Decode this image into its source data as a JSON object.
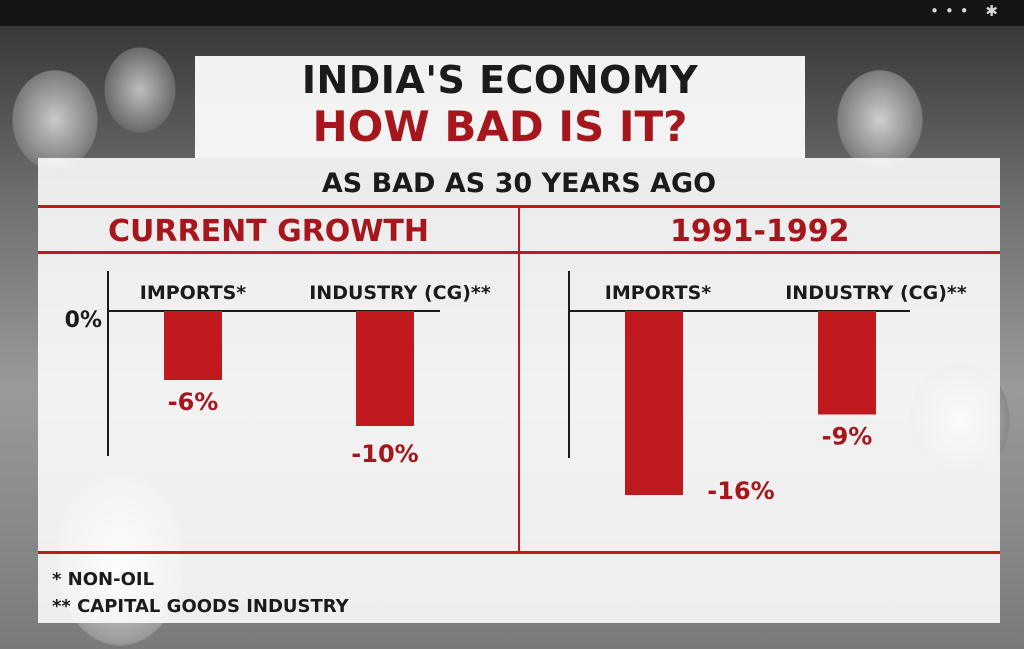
{
  "status_bar": {
    "icons": [
      "more-dots-icon",
      "bluetooth-icon"
    ],
    "glyphs": "••• ✱"
  },
  "title_line_1": "INDIA'S ECONOMY",
  "title_line_2": "HOW BAD IS IT?",
  "subtitle": "AS BAD AS 30 YEARS AGO",
  "colors": {
    "accent": "#c0191e",
    "title_red": "#a5171c",
    "text": "#1b1b1b"
  },
  "chart_data": [
    {
      "type": "bar",
      "title": "CURRENT GROWTH",
      "categories": [
        "IMPORTS*",
        "INDUSTRY (CG)**"
      ],
      "values": [
        -6,
        -10
      ],
      "value_labels": [
        "-6%",
        "-10%"
      ],
      "axis_label": "0%",
      "ylim": [
        -17,
        0
      ],
      "grid": false,
      "color": "#c0191e"
    },
    {
      "type": "bar",
      "title": "1991-1992",
      "categories": [
        "IMPORTS*",
        "INDUSTRY (CG)**"
      ],
      "values": [
        -16,
        -9
      ],
      "value_labels": [
        "-16%",
        "-9%"
      ],
      "ylim": [
        -17,
        0
      ],
      "grid": false,
      "color": "#c0191e"
    }
  ],
  "footnotes": [
    "* NON-OIL",
    "** CAPITAL GOODS INDUSTRY"
  ]
}
